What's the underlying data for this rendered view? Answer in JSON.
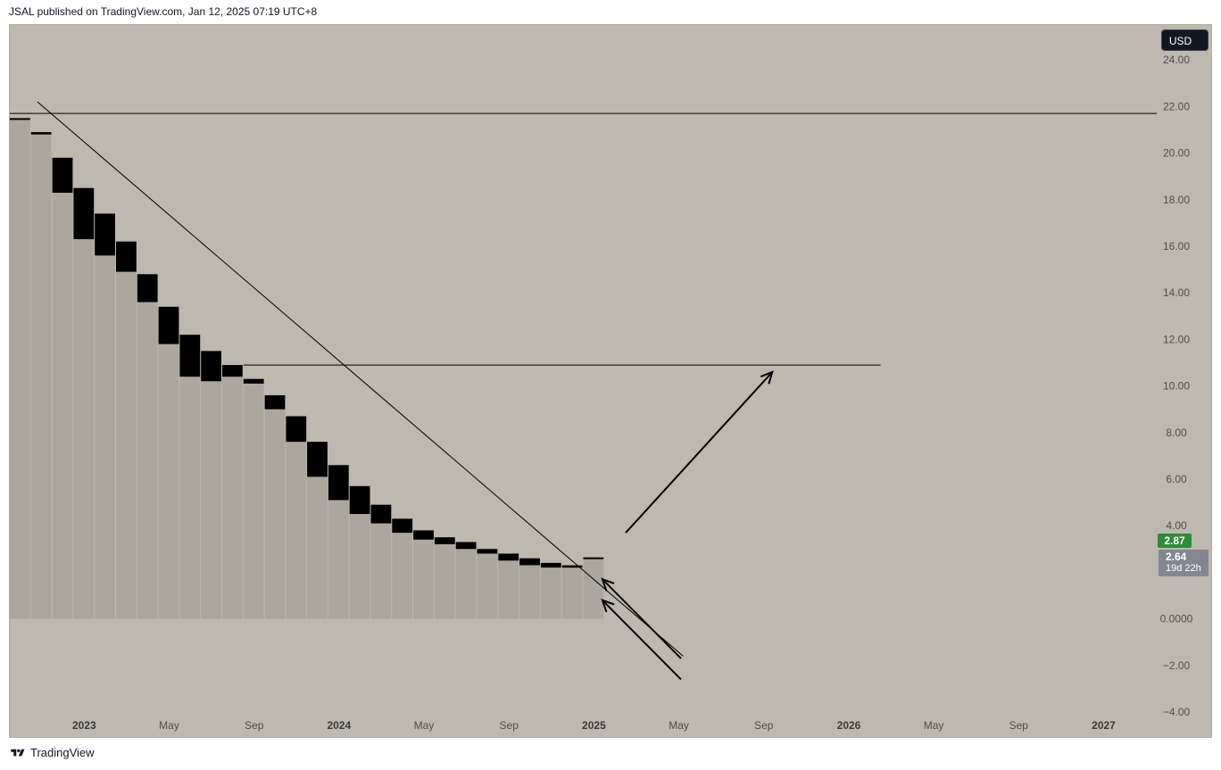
{
  "header": {
    "publisher_text": "JSAL published on TradingView.com, Jan 12, 2025 07:19 UTC+8"
  },
  "footer": {
    "brand": "TradingView"
  },
  "currency": "USD",
  "colors": {
    "background": "#bdb8b0",
    "candle_body": "#000000",
    "volume_fill": "#aba79f",
    "price_label_green": "#2e8b3a",
    "price_label_grey": "#858690"
  },
  "price_labels": {
    "current": "2.87",
    "last": "2.64",
    "countdown": "19d 22h"
  },
  "chart_data": {
    "type": "candlestick",
    "interval": "monthly",
    "y_axis": {
      "ticks": [
        "24.00",
        "22.00",
        "20.00",
        "18.00",
        "16.00",
        "14.00",
        "12.00",
        "10.00",
        "8.00",
        "6.00",
        "4.00",
        "0.0000",
        "−2.00",
        "−4.00"
      ],
      "tick_values": [
        24,
        22,
        20,
        18,
        16,
        14,
        12,
        10,
        8,
        6,
        4,
        0,
        -2,
        -4
      ],
      "range": [
        -4,
        25.5
      ]
    },
    "x_axis": {
      "ticks": [
        "2023",
        "May",
        "Sep",
        "2024",
        "May",
        "Sep",
        "2025",
        "May",
        "Sep",
        "2026",
        "May",
        "Sep",
        "2027"
      ],
      "tick_months": [
        12,
        16,
        20,
        24,
        28,
        32,
        36,
        40,
        44,
        48,
        52,
        56,
        60
      ],
      "range": [
        8.5,
        62.5
      ]
    },
    "candles": [
      {
        "month": 9,
        "open": 21.5,
        "close": 21.5
      },
      {
        "month": 10,
        "open": 20.9,
        "close": 20.8
      },
      {
        "month": 11,
        "open": 19.8,
        "close": 18.3
      },
      {
        "month": 12,
        "open": 18.5,
        "close": 16.3
      },
      {
        "month": 13,
        "open": 17.4,
        "close": 15.6
      },
      {
        "month": 14,
        "open": 16.2,
        "close": 14.9
      },
      {
        "month": 15,
        "open": 14.8,
        "close": 13.6
      },
      {
        "month": 16,
        "open": 13.4,
        "close": 11.8
      },
      {
        "month": 17,
        "open": 12.2,
        "close": 10.4
      },
      {
        "month": 18,
        "open": 11.5,
        "close": 10.2
      },
      {
        "month": 19,
        "open": 10.9,
        "close": 10.4
      },
      {
        "month": 20,
        "open": 10.3,
        "close": 10.1
      },
      {
        "month": 21,
        "open": 9.6,
        "close": 9.0
      },
      {
        "month": 22,
        "open": 8.7,
        "close": 7.6
      },
      {
        "month": 23,
        "open": 7.6,
        "close": 6.1
      },
      {
        "month": 24,
        "open": 6.6,
        "close": 5.1
      },
      {
        "month": 25,
        "open": 5.7,
        "close": 4.5
      },
      {
        "month": 26,
        "open": 4.9,
        "close": 4.1
      },
      {
        "month": 27,
        "open": 4.3,
        "close": 3.7
      },
      {
        "month": 28,
        "open": 3.8,
        "close": 3.4
      },
      {
        "month": 29,
        "open": 3.5,
        "close": 3.2
      },
      {
        "month": 30,
        "open": 3.3,
        "close": 3.0
      },
      {
        "month": 31,
        "open": 3.0,
        "close": 2.8
      },
      {
        "month": 32,
        "open": 2.8,
        "close": 2.5
      },
      {
        "month": 33,
        "open": 2.6,
        "close": 2.3
      },
      {
        "month": 34,
        "open": 2.4,
        "close": 2.2
      },
      {
        "month": 35,
        "open": 2.3,
        "close": 2.2
      },
      {
        "month": 36,
        "open": 2.64,
        "close": 2.64
      }
    ],
    "drawings": {
      "horizontal_lines": [
        {
          "name": "resistance-line-top",
          "y": 21.7,
          "x_start": 8.5,
          "x_end": 62.5
        },
        {
          "name": "target-line",
          "y": 10.9,
          "x_start": 19.5,
          "x_end": 49.5
        }
      ],
      "trend_lines": [
        {
          "name": "descending-trendline",
          "x1": 9.8,
          "y1": 22.2,
          "x2": 40.2,
          "y2": -1.6
        }
      ],
      "arrows": [
        {
          "name": "target-arrow",
          "x1": 37.5,
          "y1": 3.7,
          "x2": 44.4,
          "y2": 10.6
        },
        {
          "name": "support-arrow-upper",
          "x1": 40.1,
          "y1": -1.7,
          "x2": 36.4,
          "y2": 1.7
        },
        {
          "name": "support-arrow-lower",
          "x1": 40.1,
          "y1": -2.6,
          "x2": 36.4,
          "y2": 0.8
        }
      ]
    }
  }
}
